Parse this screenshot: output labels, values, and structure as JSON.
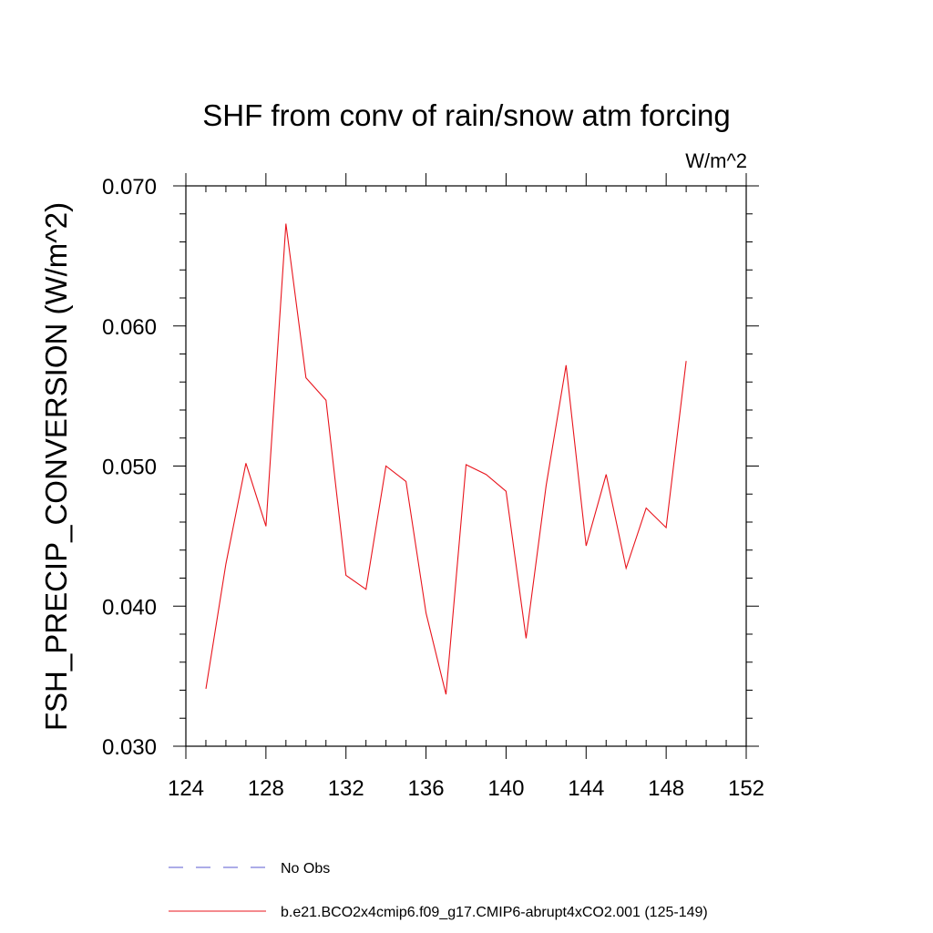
{
  "chart_data": {
    "type": "line",
    "title": "SHF from conv of rain/snow atm forcing",
    "units": "W/m^2",
    "ylabel": "FSH_PRECIP_CONVERSION  (W/m^2)",
    "xlabel": "",
    "xlim": [
      124,
      152
    ],
    "ylim": [
      0.03,
      0.07
    ],
    "x_ticks": [
      "124",
      "128",
      "132",
      "136",
      "140",
      "144",
      "148",
      "152"
    ],
    "y_ticks": [
      "0.030",
      "0.040",
      "0.050",
      "0.060",
      "0.070"
    ],
    "grid": false,
    "legend_placement": "bottom",
    "series": [
      {
        "name": "b.e21.BCO2x4cmip6.f09_g17.CMIP6-abrupt4xCO2.001 (125-149)",
        "color": "#e8141c",
        "style": "solid",
        "x": [
          125,
          126,
          127,
          128,
          129,
          130,
          131,
          132,
          133,
          134,
          135,
          136,
          137,
          138,
          139,
          140,
          141,
          142,
          143,
          144,
          145,
          146,
          147,
          148,
          149
        ],
        "values": [
          0.0341,
          0.043,
          0.0502,
          0.0457,
          0.0673,
          0.0563,
          0.0547,
          0.0422,
          0.0412,
          0.05,
          0.0489,
          0.0395,
          0.0337,
          0.0501,
          0.0494,
          0.0482,
          0.0377,
          0.0486,
          0.0572,
          0.0443,
          0.0494,
          0.0427,
          0.047,
          0.0456,
          0.0575
        ]
      }
    ],
    "legend": [
      {
        "label": "No Obs",
        "color": "#5a5ad2",
        "style": "dashed"
      },
      {
        "label": "b.e21.BCO2x4cmip6.f09_g17.CMIP6-abrupt4xCO2.001 (125-149)",
        "color": "#e8141c",
        "style": "solid"
      }
    ]
  }
}
